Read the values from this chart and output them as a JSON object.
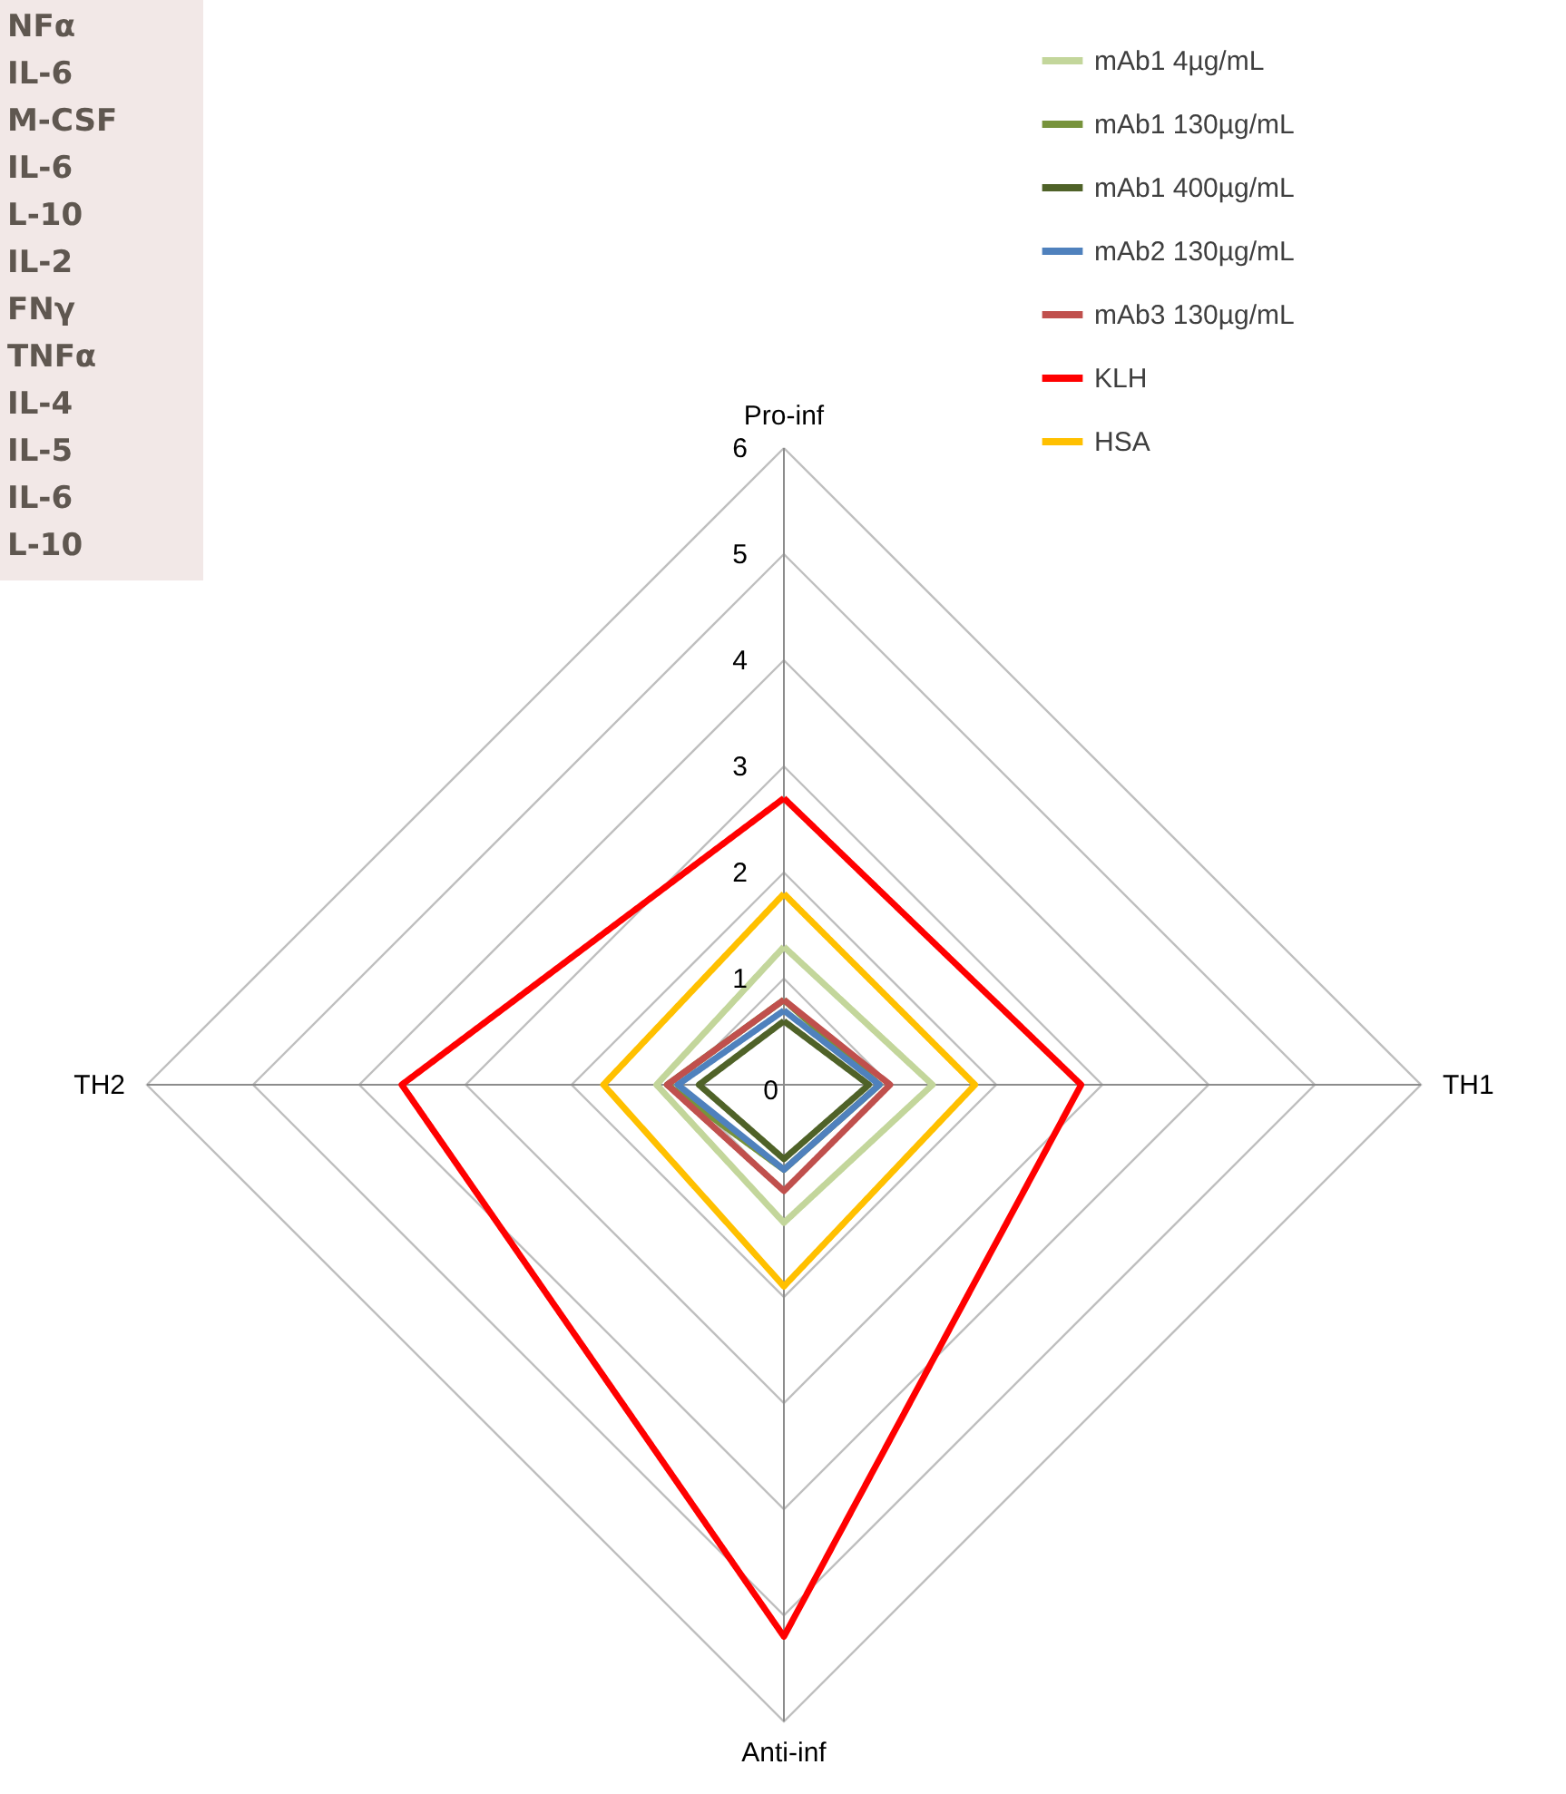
{
  "chart_data": {
    "type": "radar",
    "categories": [
      "Pro-inf",
      "TH1",
      "Anti-inf",
      "TH2"
    ],
    "series": [
      {
        "name": "mAb1 4µg/mL",
        "color": "#c3d69b",
        "values": [
          1.3,
          1.4,
          1.3,
          1.2
        ]
      },
      {
        "name": "mAb1 130µg/mL",
        "color": "#77933c",
        "values": [
          0.8,
          0.9,
          0.8,
          1.1
        ]
      },
      {
        "name": "mAb1 400µg/mL",
        "color": "#4f6228",
        "values": [
          0.6,
          0.8,
          0.7,
          0.8
        ]
      },
      {
        "name": "mAb2 130µg/mL",
        "color": "#4f81bd",
        "values": [
          0.7,
          0.9,
          0.8,
          1.0
        ]
      },
      {
        "name": "mAb3 130µg/mL",
        "color": "#c0504d",
        "values": [
          0.8,
          1.0,
          1.0,
          1.1
        ]
      },
      {
        "name": "KLH",
        "color": "#ff0000",
        "values": [
          2.7,
          2.8,
          5.2,
          3.6
        ]
      },
      {
        "name": "HSA",
        "color": "#ffc000",
        "values": [
          1.8,
          1.8,
          1.9,
          1.7
        ]
      }
    ],
    "ylim": [
      0,
      6
    ],
    "yticks": [
      0,
      1,
      2,
      3,
      4,
      5,
      6
    ],
    "grid": true,
    "legend": "top right",
    "marker": "none",
    "line_style": "solid",
    "annotations": [
      "NFα",
      "IL-6",
      "M-CSF",
      "IL-6",
      "L-10",
      "IL-2",
      "FNγ",
      "TNFα",
      "IL-4",
      "IL-5",
      "IL-6",
      "L-10"
    ]
  }
}
